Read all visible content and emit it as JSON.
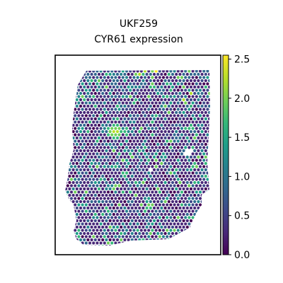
{
  "chart_data": {
    "type": "heatmap",
    "title": "UKF259",
    "subtitle": "CYR61 expression",
    "xlabel": "",
    "ylabel": "",
    "grid": false,
    "colormap": "viridis",
    "colorbar": {
      "min": 0.0,
      "max": 2.55,
      "ticks": [
        0.0,
        0.5,
        1.0,
        1.5,
        2.0,
        2.5
      ],
      "tick_labels": [
        "0.0",
        "0.5",
        "1.0",
        "1.5",
        "2.0",
        "2.5"
      ],
      "colors": [
        "#440154",
        "#482878",
        "#3e4989",
        "#31688e",
        "#26828e",
        "#1f9e89",
        "#35b779",
        "#6ece58",
        "#b5de2b",
        "#fde725"
      ]
    },
    "hotspots": [
      {
        "label": "bright spot upper-middle",
        "value": 2.5
      },
      {
        "label": "scattered medium spots",
        "value": 1.5
      },
      {
        "label": "background tissue",
        "value": 0.1
      }
    ]
  }
}
